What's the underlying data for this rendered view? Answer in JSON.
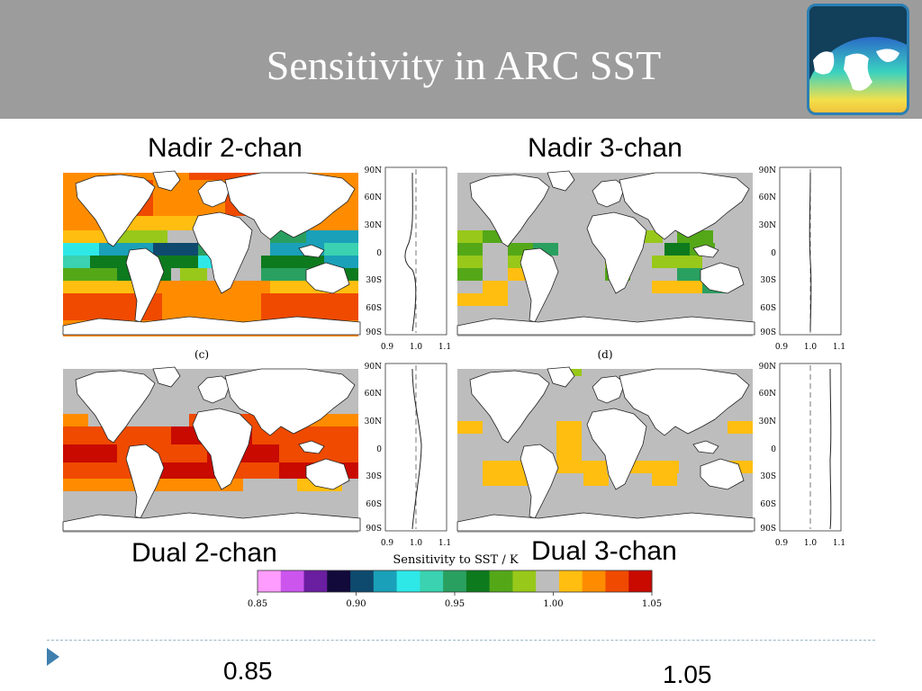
{
  "slide": {
    "title": "Sensitivity in ARC SST"
  },
  "logo": {
    "icon": "globe-sst-logo-icon"
  },
  "panels": [
    {
      "label": "Nadir 2-chan",
      "letter": ""
    },
    {
      "label": "Nadir 3-chan",
      "letter": ""
    },
    {
      "label": "Dual 2-chan",
      "letter": "(c)"
    },
    {
      "label": "Dual 3-chan",
      "letter": "(d)"
    }
  ],
  "profile": {
    "lat_labels": [
      "90N",
      "60N",
      "30N",
      "0",
      "30S",
      "60S",
      "90S"
    ],
    "x_labels": [
      "0.9",
      "1.0",
      "1.1"
    ],
    "xlabel": "Sensitivity to SST / K"
  },
  "colorbar": {
    "tick_labels": [
      "0.85",
      "0.90",
      "0.95",
      "1.00",
      "1.05"
    ],
    "colors": [
      "#ff9cff",
      "#cc55ee",
      "#6a1ea0",
      "#120a3a",
      "#0e4a6e",
      "#1aa0b8",
      "#2ee8e8",
      "#3ad2b0",
      "#2aa060",
      "#0e7a1e",
      "#54a818",
      "#98c81a",
      "#bdbdbd",
      "#ffbe10",
      "#ff8c00",
      "#ef4a00",
      "#c80a00"
    ]
  },
  "footer": {
    "left_value": "0.85",
    "right_value": "1.05"
  },
  "colors": {
    "header": "#9c9c9c",
    "land": "#ffffff",
    "no_data": "#bdbdbd",
    "bullet": "#3f7fae"
  }
}
